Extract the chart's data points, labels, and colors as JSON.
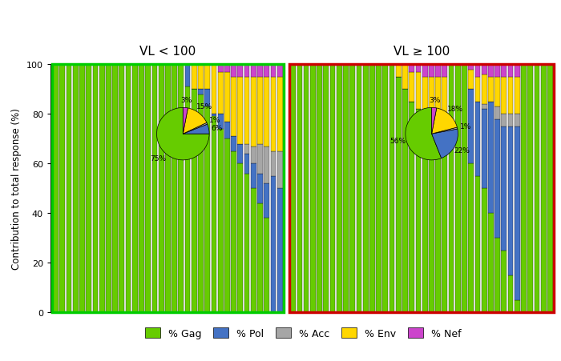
{
  "colors": [
    "#66CC00",
    "#4472C4",
    "#A6A6A6",
    "#FFD700",
    "#CC44CC"
  ],
  "color_names": [
    "Gag",
    "Pol",
    "Acc",
    "Env",
    "Nef"
  ],
  "group1_title": "VL < 100",
  "group2_title": "VL ≥ 100",
  "ylabel": "Contribution to total response (%)",
  "legend_labels": [
    "% Gag",
    "% Pol",
    "% Acc",
    "% Env",
    "% Nef"
  ],
  "pie1": [
    75,
    6,
    1,
    15,
    3
  ],
  "pie2": [
    56,
    22,
    1,
    18,
    3
  ],
  "group1_border": "#00CC00",
  "group2_border": "#CC0000",
  "group1_bars": [
    [
      100,
      0,
      0,
      0,
      0
    ],
    [
      100,
      0,
      0,
      0,
      0
    ],
    [
      100,
      0,
      0,
      0,
      0
    ],
    [
      100,
      0,
      0,
      0,
      0
    ],
    [
      100,
      0,
      0,
      0,
      0
    ],
    [
      100,
      0,
      0,
      0,
      0
    ],
    [
      100,
      0,
      0,
      0,
      0
    ],
    [
      100,
      0,
      0,
      0,
      0
    ],
    [
      100,
      0,
      0,
      0,
      0
    ],
    [
      100,
      0,
      0,
      0,
      0
    ],
    [
      100,
      0,
      0,
      0,
      0
    ],
    [
      100,
      0,
      0,
      0,
      0
    ],
    [
      100,
      0,
      0,
      0,
      0
    ],
    [
      100,
      0,
      0,
      0,
      0
    ],
    [
      100,
      0,
      0,
      0,
      0
    ],
    [
      100,
      0,
      0,
      0,
      0
    ],
    [
      100,
      0,
      0,
      0,
      0
    ],
    [
      100,
      0,
      0,
      0,
      0
    ],
    [
      100,
      0,
      0,
      0,
      0
    ],
    [
      100,
      0,
      0,
      0,
      0
    ],
    [
      91,
      9,
      0,
      0,
      0
    ],
    [
      90,
      0,
      0,
      10,
      0
    ],
    [
      88,
      2,
      0,
      10,
      0
    ],
    [
      83,
      7,
      0,
      10,
      0
    ],
    [
      79,
      1,
      0,
      20,
      0
    ],
    [
      74,
      6,
      0,
      17,
      3
    ],
    [
      70,
      7,
      0,
      20,
      3
    ],
    [
      65,
      6,
      0,
      24,
      5
    ],
    [
      60,
      8,
      0,
      27,
      5
    ],
    [
      56,
      8,
      4,
      27,
      5
    ],
    [
      50,
      10,
      7,
      28,
      5
    ],
    [
      44,
      12,
      12,
      27,
      5
    ],
    [
      38,
      14,
      15,
      28,
      5
    ],
    [
      0,
      55,
      10,
      30,
      5
    ],
    [
      0,
      50,
      15,
      30,
      5
    ]
  ],
  "group2_bars": [
    [
      100,
      0,
      0,
      0,
      0
    ],
    [
      100,
      0,
      0,
      0,
      0
    ],
    [
      100,
      0,
      0,
      0,
      0
    ],
    [
      100,
      0,
      0,
      0,
      0
    ],
    [
      100,
      0,
      0,
      0,
      0
    ],
    [
      100,
      0,
      0,
      0,
      0
    ],
    [
      100,
      0,
      0,
      0,
      0
    ],
    [
      100,
      0,
      0,
      0,
      0
    ],
    [
      100,
      0,
      0,
      0,
      0
    ],
    [
      100,
      0,
      0,
      0,
      0
    ],
    [
      100,
      0,
      0,
      0,
      0
    ],
    [
      100,
      0,
      0,
      0,
      0
    ],
    [
      100,
      0,
      0,
      0,
      0
    ],
    [
      100,
      0,
      0,
      0,
      0
    ],
    [
      100,
      0,
      0,
      0,
      0
    ],
    [
      100,
      0,
      0,
      0,
      0
    ],
    [
      95,
      0,
      0,
      5,
      0
    ],
    [
      90,
      0,
      0,
      10,
      0
    ],
    [
      85,
      0,
      0,
      12,
      3
    ],
    [
      82,
      0,
      0,
      15,
      3
    ],
    [
      75,
      0,
      0,
      20,
      5
    ],
    [
      70,
      0,
      0,
      25,
      5
    ],
    [
      68,
      0,
      0,
      27,
      5
    ],
    [
      65,
      5,
      0,
      25,
      5
    ],
    [
      100,
      0,
      0,
      0,
      0
    ],
    [
      100,
      0,
      0,
      0,
      0
    ],
    [
      100,
      0,
      0,
      0,
      0
    ],
    [
      60,
      30,
      0,
      8,
      2
    ],
    [
      55,
      30,
      0,
      10,
      5
    ],
    [
      50,
      32,
      2,
      12,
      4
    ],
    [
      40,
      45,
      0,
      10,
      5
    ],
    [
      30,
      48,
      5,
      12,
      5
    ],
    [
      25,
      50,
      5,
      15,
      5
    ],
    [
      15,
      60,
      5,
      15,
      5
    ],
    [
      5,
      70,
      5,
      15,
      5
    ],
    [
      100,
      0,
      0,
      0,
      0
    ],
    [
      100,
      0,
      0,
      0,
      0
    ],
    [
      100,
      0,
      0,
      0,
      0
    ],
    [
      100,
      0,
      0,
      0,
      0
    ],
    [
      100,
      0,
      0,
      0,
      0
    ]
  ]
}
